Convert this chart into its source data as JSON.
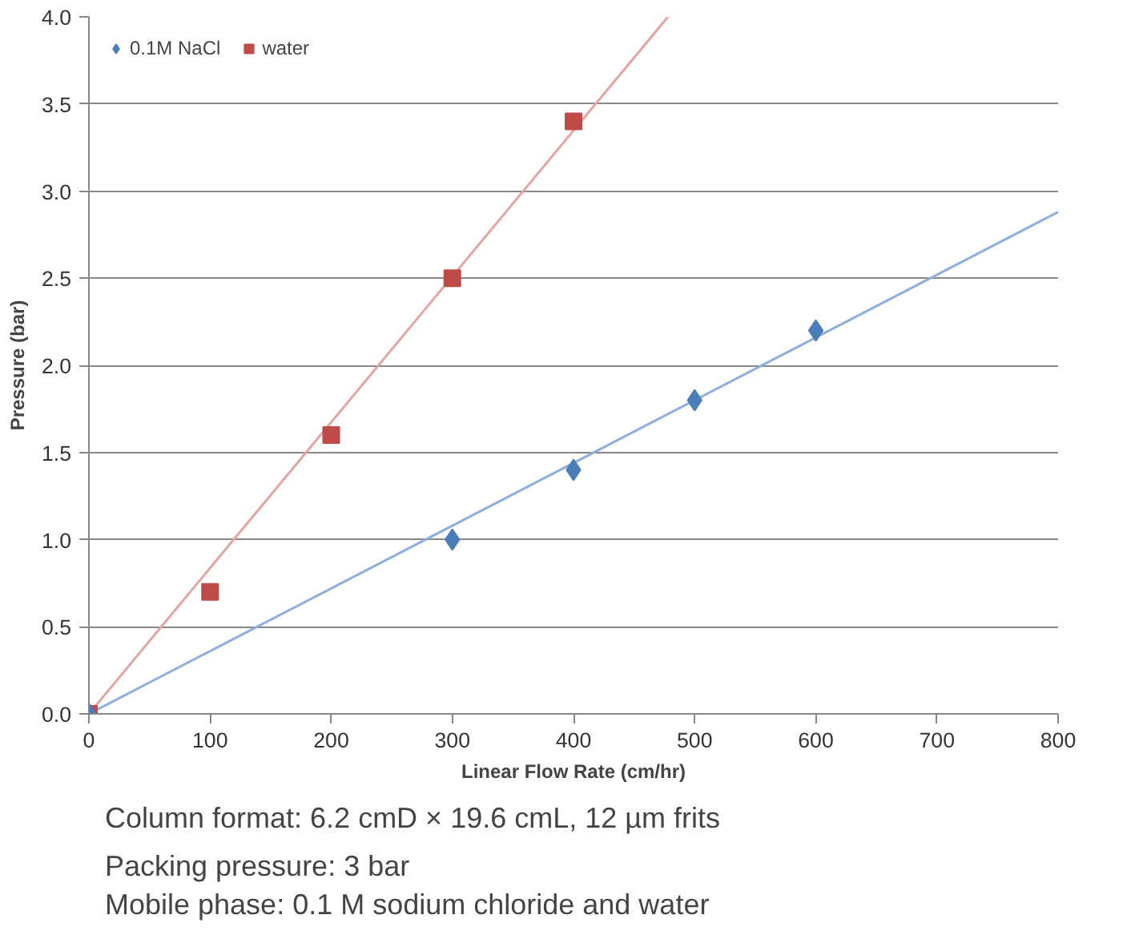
{
  "chart_data": {
    "type": "scatter",
    "xlabel": "Linear Flow Rate (cm/hr)",
    "ylabel": "Pressure (bar)",
    "xlim": [
      0,
      800
    ],
    "ylim": [
      0,
      4.0
    ],
    "xticks": [
      0,
      100,
      200,
      300,
      400,
      500,
      600,
      700,
      800
    ],
    "yticks": [
      {
        "value": 0,
        "label": "0.0"
      },
      {
        "value": 0.5,
        "label": "0.5"
      },
      {
        "value": 1,
        "label": "1.0"
      },
      {
        "value": 1.5,
        "label": "1.5"
      },
      {
        "value": 2,
        "label": "2.0"
      },
      {
        "value": 2.5,
        "label": "2.5"
      },
      {
        "value": 3,
        "label": "3.0"
      },
      {
        "value": 3.5,
        "label": "3.5"
      },
      {
        "value": 4,
        "label": "4.0"
      }
    ],
    "grid": "y",
    "legend": "top left",
    "series": [
      {
        "name": "0.1M NaCl",
        "color": "#4a7ebb",
        "marker": "diamond",
        "x": [
          0,
          300,
          400,
          500,
          600
        ],
        "values": [
          0,
          1.0,
          1.4,
          1.8,
          2.2
        ]
      },
      {
        "name": "water",
        "color": "#be4b48",
        "marker": "square",
        "x": [
          0,
          100,
          200,
          300,
          400
        ],
        "values": [
          0,
          0.7,
          1.6,
          2.5,
          3.4
        ]
      },
      {
        "type": "line",
        "color": "#8eb0dc",
        "marker": "none",
        "x": [
          0,
          800
        ],
        "values": [
          0,
          2.88
        ]
      },
      {
        "type": "line",
        "color": "#e3a5a2",
        "marker": "none",
        "x": [
          0,
          478
        ],
        "values": [
          0,
          4.0
        ]
      }
    ],
    "annotations": [
      "Column format:\t6.2 cmD × 19.6 cmL, 12 µm frits",
      "Packing pressure:\t3 bar",
      "Mobile phase:\t0.1 M sodium chloride and water"
    ]
  }
}
